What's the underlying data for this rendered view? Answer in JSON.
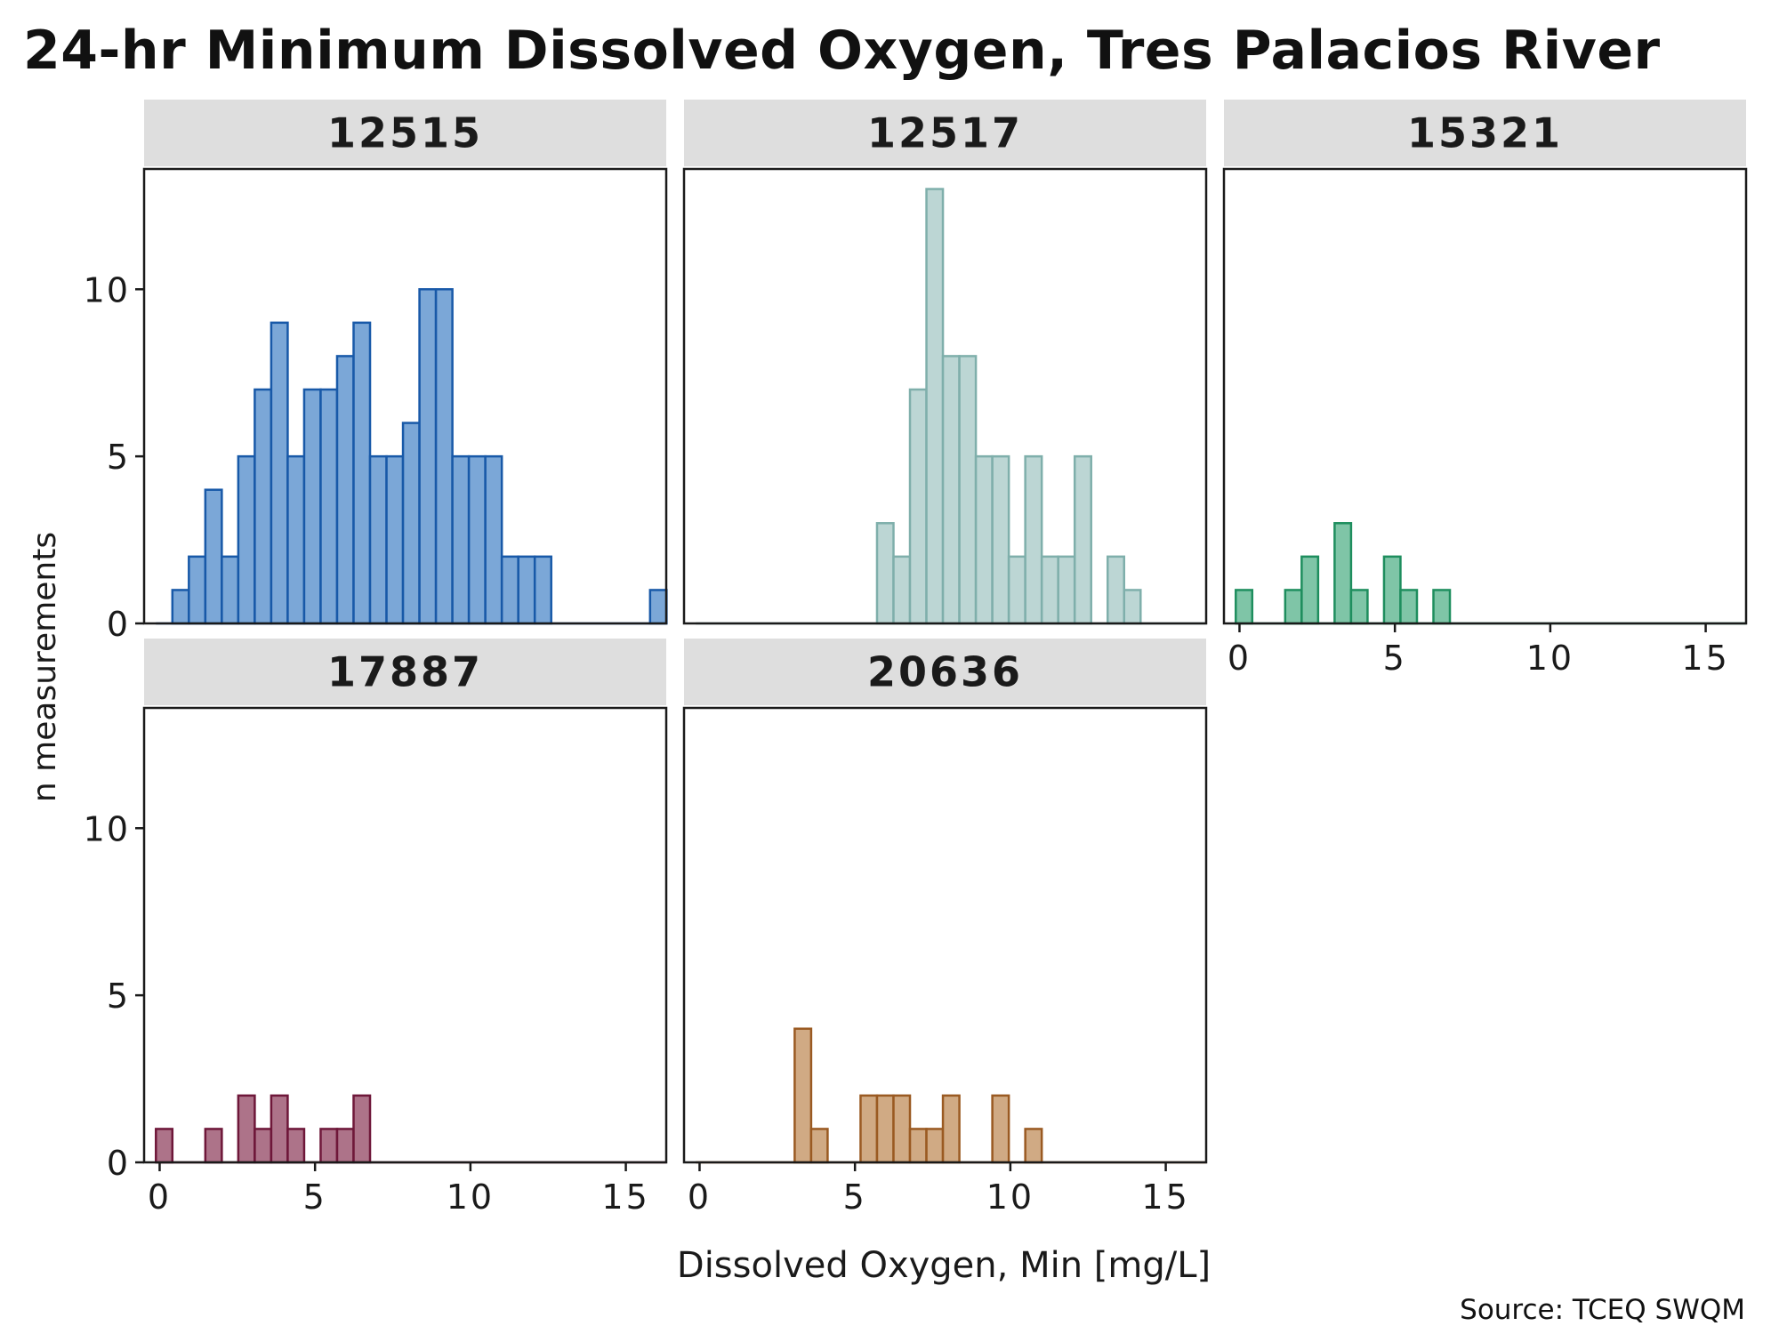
{
  "chart_data": {
    "type": "bar",
    "title": "24-hr Minimum Dissolved Oxygen, Tres Palacios River",
    "xlabel": "Dissolved Oxygen, Min [mg/L]",
    "ylabel": "n measurements",
    "caption": "Source: TCEQ SWQM",
    "xlim": [
      -0.5,
      16.3
    ],
    "ylim": [
      0,
      13.6
    ],
    "x_ticks": [
      0,
      5,
      10,
      15
    ],
    "y_ticks": [
      0,
      5,
      10
    ],
    "bin_width": 0.53,
    "grid": false,
    "panels": [
      {
        "name": "12515",
        "fill": "#7BA7D7",
        "stroke": "#1859A8",
        "bin_start": -0.12,
        "counts": [
          0,
          1,
          2,
          4,
          2,
          5,
          7,
          9,
          5,
          7,
          7,
          8,
          9,
          5,
          5,
          6,
          10,
          10,
          5,
          5,
          5,
          2,
          2,
          2,
          0,
          0,
          0,
          0,
          0,
          0,
          1
        ]
      },
      {
        "name": "12517",
        "fill": "#BCD6D4",
        "stroke": "#7FAFAB",
        "bin_start": -0.12,
        "counts": [
          0,
          0,
          0,
          0,
          0,
          0,
          0,
          0,
          0,
          0,
          0,
          3,
          2,
          7,
          13,
          8,
          8,
          5,
          5,
          2,
          5,
          2,
          2,
          5,
          0,
          2,
          1,
          0,
          0,
          0,
          0
        ]
      },
      {
        "name": "15321",
        "fill": "#7FC5A7",
        "stroke": "#1E8E5E",
        "bin_start": -0.12,
        "counts": [
          1,
          0,
          0,
          1,
          2,
          0,
          3,
          1,
          0,
          2,
          1,
          0,
          1,
          0,
          0,
          0,
          0,
          0,
          0,
          0,
          0,
          0,
          0,
          0,
          0,
          0,
          0,
          0,
          0,
          0,
          0
        ]
      },
      {
        "name": "17887",
        "fill": "#AD7389",
        "stroke": "#6E1739",
        "bin_start": -0.12,
        "counts": [
          1,
          0,
          0,
          1,
          0,
          2,
          1,
          2,
          1,
          0,
          1,
          1,
          2,
          0,
          0,
          0,
          0,
          0,
          0,
          0,
          0,
          0,
          0,
          0,
          0,
          0,
          0,
          0,
          0,
          0,
          0
        ]
      },
      {
        "name": "20636",
        "fill": "#D0AA84",
        "stroke": "#9A5A22",
        "bin_start": -0.12,
        "counts": [
          0,
          0,
          0,
          0,
          0,
          0,
          4,
          1,
          0,
          0,
          2,
          2,
          2,
          1,
          1,
          2,
          0,
          0,
          2,
          0,
          1,
          0,
          0,
          0,
          0,
          0,
          0,
          0,
          0,
          0,
          0
        ]
      }
    ]
  }
}
